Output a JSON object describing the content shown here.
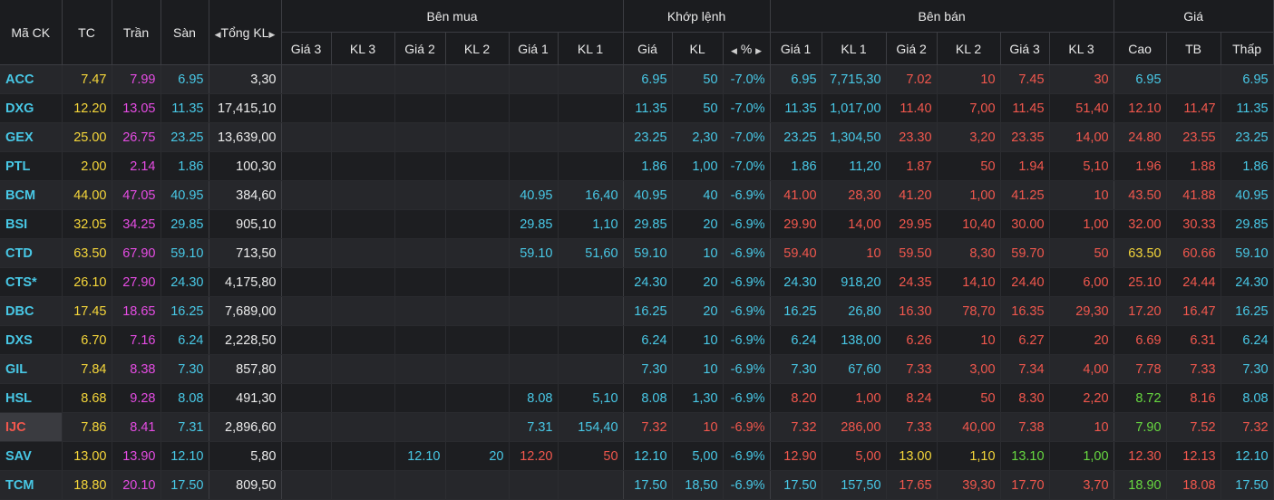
{
  "header": {
    "groups": {
      "ben_mua": "Bên mua",
      "khop_lenh": "Khớp lệnh",
      "ben_ban": "Bên bán",
      "gia": "Giá"
    },
    "columns": {
      "ma_ck": "Mã CK",
      "tc": "TC",
      "tran": "Trần",
      "san": "Sàn",
      "tong_kl": "Tổng KL",
      "mua_gia3": "Giá 3",
      "mua_kl3": "KL 3",
      "mua_gia2": "Giá 2",
      "mua_kl2": "KL 2",
      "mua_gia1": "Giá 1",
      "mua_kl1": "KL 1",
      "khop_gia": "Giá",
      "khop_kl": "KL",
      "khop_pct": "%",
      "ban_gia1": "Giá 1",
      "ban_kl1": "KL 1",
      "ban_gia2": "Giá 2",
      "ban_kl2": "KL 2",
      "ban_gia3": "Giá 3",
      "ban_kl3": "KL 3",
      "cao": "Cao",
      "tb": "TB",
      "thap": "Thấp"
    }
  },
  "colors": {
    "cyan": "#48c8e6",
    "yellow": "#f5d63a",
    "magenta": "#e54ce3",
    "white": "#ececec",
    "red": "#f1574d",
    "green": "#67d840"
  },
  "rows": [
    {
      "sym": "ACC",
      "symc": "cyan",
      "tc": "7.47",
      "tran": "7.99",
      "san": "6.95",
      "tkl": "3,30",
      "mg3": "",
      "mk3": "",
      "mg2": "",
      "mk2": "",
      "mg1": "",
      "mk1": "",
      "mc1": "",
      "kg": "6.95",
      "kk": "50",
      "kp": "-7.0%",
      "kc": "cyan",
      "bg1": "6.95",
      "bk1": "7,715,30",
      "bc1": "cyan",
      "bg2": "7.02",
      "bk2": "10",
      "bc2": "red",
      "bg3": "7.45",
      "bk3": "30",
      "bc3": "red",
      "cao": "6.95",
      "caoc": "cyan",
      "tb": "",
      "tbc": "red",
      "thap": "6.95",
      "thapc": "cyan"
    },
    {
      "sym": "DXG",
      "symc": "cyan",
      "tc": "12.20",
      "tran": "13.05",
      "san": "11.35",
      "tkl": "17,415,10",
      "mg3": "",
      "mk3": "",
      "mg2": "",
      "mk2": "",
      "mg1": "",
      "mk1": "",
      "mc1": "",
      "kg": "11.35",
      "kk": "50",
      "kp": "-7.0%",
      "kc": "cyan",
      "bg1": "11.35",
      "bk1": "1,017,00",
      "bc1": "cyan",
      "bg2": "11.40",
      "bk2": "7,00",
      "bc2": "red",
      "bg3": "11.45",
      "bk3": "51,40",
      "bc3": "red",
      "cao": "12.10",
      "caoc": "red",
      "tb": "11.47",
      "tbc": "red",
      "thap": "11.35",
      "thapc": "cyan"
    },
    {
      "sym": "GEX",
      "symc": "cyan",
      "tc": "25.00",
      "tran": "26.75",
      "san": "23.25",
      "tkl": "13,639,00",
      "mg3": "",
      "mk3": "",
      "mg2": "",
      "mk2": "",
      "mg1": "",
      "mk1": "",
      "mc1": "",
      "kg": "23.25",
      "kk": "2,30",
      "kp": "-7.0%",
      "kc": "cyan",
      "bg1": "23.25",
      "bk1": "1,304,50",
      "bc1": "cyan",
      "bg2": "23.30",
      "bk2": "3,20",
      "bc2": "red",
      "bg3": "23.35",
      "bk3": "14,00",
      "bc3": "red",
      "cao": "24.80",
      "caoc": "red",
      "tb": "23.55",
      "tbc": "red",
      "thap": "23.25",
      "thapc": "cyan"
    },
    {
      "sym": "PTL",
      "symc": "cyan",
      "tc": "2.00",
      "tran": "2.14",
      "san": "1.86",
      "tkl": "100,30",
      "mg3": "",
      "mk3": "",
      "mg2": "",
      "mk2": "",
      "mg1": "",
      "mk1": "",
      "mc1": "",
      "kg": "1.86",
      "kk": "1,00",
      "kp": "-7.0%",
      "kc": "cyan",
      "bg1": "1.86",
      "bk1": "11,20",
      "bc1": "cyan",
      "bg2": "1.87",
      "bk2": "50",
      "bc2": "red",
      "bg3": "1.94",
      "bk3": "5,10",
      "bc3": "red",
      "cao": "1.96",
      "caoc": "red",
      "tb": "1.88",
      "tbc": "red",
      "thap": "1.86",
      "thapc": "cyan"
    },
    {
      "sym": "BCM",
      "symc": "cyan",
      "tc": "44.00",
      "tran": "47.05",
      "san": "40.95",
      "tkl": "384,60",
      "mg3": "",
      "mk3": "",
      "mg2": "",
      "mk2": "",
      "mg1": "40.95",
      "mk1": "16,40",
      "mc1": "cyan",
      "kg": "40.95",
      "kk": "40",
      "kp": "-6.9%",
      "kc": "cyan",
      "bg1": "41.00",
      "bk1": "28,30",
      "bc1": "red",
      "bg2": "41.20",
      "bk2": "1,00",
      "bc2": "red",
      "bg3": "41.25",
      "bk3": "10",
      "bc3": "red",
      "cao": "43.50",
      "caoc": "red",
      "tb": "41.88",
      "tbc": "red",
      "thap": "40.95",
      "thapc": "cyan"
    },
    {
      "sym": "BSI",
      "symc": "cyan",
      "tc": "32.05",
      "tran": "34.25",
      "san": "29.85",
      "tkl": "905,10",
      "mg3": "",
      "mk3": "",
      "mg2": "",
      "mk2": "",
      "mg1": "29.85",
      "mk1": "1,10",
      "mc1": "cyan",
      "kg": "29.85",
      "kk": "20",
      "kp": "-6.9%",
      "kc": "cyan",
      "bg1": "29.90",
      "bk1": "14,00",
      "bc1": "red",
      "bg2": "29.95",
      "bk2": "10,40",
      "bc2": "red",
      "bg3": "30.00",
      "bk3": "1,00",
      "bc3": "red",
      "cao": "32.00",
      "caoc": "red",
      "tb": "30.33",
      "tbc": "red",
      "thap": "29.85",
      "thapc": "cyan"
    },
    {
      "sym": "CTD",
      "symc": "cyan",
      "tc": "63.50",
      "tran": "67.90",
      "san": "59.10",
      "tkl": "713,50",
      "mg3": "",
      "mk3": "",
      "mg2": "",
      "mk2": "",
      "mg1": "59.10",
      "mk1": "51,60",
      "mc1": "cyan",
      "kg": "59.10",
      "kk": "10",
      "kp": "-6.9%",
      "kc": "cyan",
      "bg1": "59.40",
      "bk1": "10",
      "bc1": "red",
      "bg2": "59.50",
      "bk2": "8,30",
      "bc2": "red",
      "bg3": "59.70",
      "bk3": "50",
      "bc3": "red",
      "cao": "63.50",
      "caoc": "yellow",
      "tb": "60.66",
      "tbc": "red",
      "thap": "59.10",
      "thapc": "cyan"
    },
    {
      "sym": "CTS*",
      "symc": "cyan",
      "tc": "26.10",
      "tran": "27.90",
      "san": "24.30",
      "tkl": "4,175,80",
      "mg3": "",
      "mk3": "",
      "mg2": "",
      "mk2": "",
      "mg1": "",
      "mk1": "",
      "mc1": "",
      "kg": "24.30",
      "kk": "20",
      "kp": "-6.9%",
      "kc": "cyan",
      "bg1": "24.30",
      "bk1": "918,20",
      "bc1": "cyan",
      "bg2": "24.35",
      "bk2": "14,10",
      "bc2": "red",
      "bg3": "24.40",
      "bk3": "6,00",
      "bc3": "red",
      "cao": "25.10",
      "caoc": "red",
      "tb": "24.44",
      "tbc": "red",
      "thap": "24.30",
      "thapc": "cyan"
    },
    {
      "sym": "DBC",
      "symc": "cyan",
      "tc": "17.45",
      "tran": "18.65",
      "san": "16.25",
      "tkl": "7,689,00",
      "mg3": "",
      "mk3": "",
      "mg2": "",
      "mk2": "",
      "mg1": "",
      "mk1": "",
      "mc1": "",
      "kg": "16.25",
      "kk": "20",
      "kp": "-6.9%",
      "kc": "cyan",
      "bg1": "16.25",
      "bk1": "26,80",
      "bc1": "cyan",
      "bg2": "16.30",
      "bk2": "78,70",
      "bc2": "red",
      "bg3": "16.35",
      "bk3": "29,30",
      "bc3": "red",
      "cao": "17.20",
      "caoc": "red",
      "tb": "16.47",
      "tbc": "red",
      "thap": "16.25",
      "thapc": "cyan"
    },
    {
      "sym": "DXS",
      "symc": "cyan",
      "tc": "6.70",
      "tran": "7.16",
      "san": "6.24",
      "tkl": "2,228,50",
      "mg3": "",
      "mk3": "",
      "mg2": "",
      "mk2": "",
      "mg1": "",
      "mk1": "",
      "mc1": "",
      "kg": "6.24",
      "kk": "10",
      "kp": "-6.9%",
      "kc": "cyan",
      "bg1": "6.24",
      "bk1": "138,00",
      "bc1": "cyan",
      "bg2": "6.26",
      "bk2": "10",
      "bc2": "red",
      "bg3": "6.27",
      "bk3": "20",
      "bc3": "red",
      "cao": "6.69",
      "caoc": "red",
      "tb": "6.31",
      "tbc": "red",
      "thap": "6.24",
      "thapc": "cyan"
    },
    {
      "sym": "GIL",
      "symc": "cyan",
      "tc": "7.84",
      "tran": "8.38",
      "san": "7.30",
      "tkl": "857,80",
      "mg3": "",
      "mk3": "",
      "mg2": "",
      "mk2": "",
      "mg1": "",
      "mk1": "",
      "mc1": "",
      "kg": "7.30",
      "kk": "10",
      "kp": "-6.9%",
      "kc": "cyan",
      "bg1": "7.30",
      "bk1": "67,60",
      "bc1": "cyan",
      "bg2": "7.33",
      "bk2": "3,00",
      "bc2": "red",
      "bg3": "7.34",
      "bk3": "4,00",
      "bc3": "red",
      "cao": "7.78",
      "caoc": "red",
      "tb": "7.33",
      "tbc": "red",
      "thap": "7.30",
      "thapc": "cyan"
    },
    {
      "sym": "HSL",
      "symc": "cyan",
      "tc": "8.68",
      "tran": "9.28",
      "san": "8.08",
      "tkl": "491,30",
      "mg3": "",
      "mk3": "",
      "mg2": "",
      "mk2": "",
      "mg1": "8.08",
      "mk1": "5,10",
      "mc1": "cyan",
      "kg": "8.08",
      "kk": "1,30",
      "kp": "-6.9%",
      "kc": "cyan",
      "bg1": "8.20",
      "bk1": "1,00",
      "bc1": "red",
      "bg2": "8.24",
      "bk2": "50",
      "bc2": "red",
      "bg3": "8.30",
      "bk3": "2,20",
      "bc3": "red",
      "cao": "8.72",
      "caoc": "green",
      "tb": "8.16",
      "tbc": "red",
      "thap": "8.08",
      "thapc": "cyan"
    },
    {
      "sym": "IJC",
      "symc": "red",
      "tc": "7.86",
      "tran": "8.41",
      "san": "7.31",
      "tkl": "2,896,60",
      "mg3": "",
      "mk3": "",
      "mg2": "",
      "mk2": "",
      "mg1": "7.31",
      "mk1": "154,40",
      "mc1": "cyan",
      "kg": "7.32",
      "kk": "10",
      "kp": "-6.9%",
      "kc": "red",
      "bg1": "7.32",
      "bk1": "286,00",
      "bc1": "red",
      "bg2": "7.33",
      "bk2": "40,00",
      "bc2": "red",
      "bg3": "7.38",
      "bk3": "10",
      "bc3": "red",
      "cao": "7.90",
      "caoc": "green",
      "tb": "7.52",
      "tbc": "red",
      "thap": "7.32",
      "thapc": "red"
    },
    {
      "sym": "SAV",
      "symc": "cyan",
      "tc": "13.00",
      "tran": "13.90",
      "san": "12.10",
      "tkl": "5,80",
      "mg3": "",
      "mk3": "",
      "mg2": "12.10",
      "mk2": "20",
      "mg1": "12.20",
      "mk1": "50",
      "mc1": "red",
      "kg": "12.10",
      "kk": "5,00",
      "kp": "-6.9%",
      "kc": "cyan",
      "bg1": "12.90",
      "bk1": "5,00",
      "bc1": "red",
      "bg2": "13.00",
      "bk2": "1,10",
      "bc2": "yellow",
      "bg3": "13.10",
      "bk3": "1,00",
      "bc3": "green",
      "cao": "12.30",
      "caoc": "red",
      "tb": "12.13",
      "tbc": "red",
      "thap": "12.10",
      "thapc": "cyan"
    },
    {
      "sym": "TCM",
      "symc": "cyan",
      "tc": "18.80",
      "tran": "20.10",
      "san": "17.50",
      "tkl": "809,50",
      "mg3": "",
      "mk3": "",
      "mg2": "",
      "mk2": "",
      "mg1": "",
      "mk1": "",
      "mc1": "",
      "kg": "17.50",
      "kk": "18,50",
      "kp": "-6.9%",
      "kc": "cyan",
      "bg1": "17.50",
      "bk1": "157,50",
      "bc1": "cyan",
      "bg2": "17.65",
      "bk2": "39,30",
      "bc2": "red",
      "bg3": "17.70",
      "bk3": "3,70",
      "bc3": "red",
      "cao": "18.90",
      "caoc": "green",
      "tb": "18.08",
      "tbc": "red",
      "thap": "17.50",
      "thapc": "cyan"
    }
  ]
}
